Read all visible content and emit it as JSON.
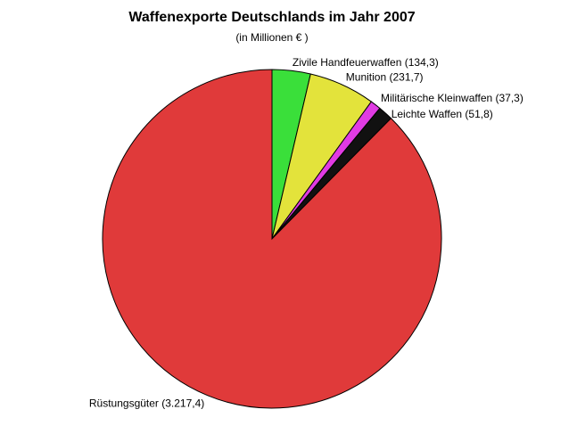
{
  "chart_data": {
    "type": "pie",
    "title": "Waffenexporte Deutschlands im Jahr 2007",
    "subtitle": "(in Millionen € )",
    "start": "top",
    "direction": "clockwise",
    "slices": [
      {
        "label": "Zivile Handfeuerwaffen (134,3)",
        "value": 134.3,
        "color": "#3ADF3A"
      },
      {
        "label": "Munition (231,7)",
        "value": 231.7,
        "color": "#E3E33B"
      },
      {
        "label": "Militärische Kleinwaffen (37,3)",
        "value": 37.3,
        "color": "#E03BE3"
      },
      {
        "label": "Leichte Waffen (51,8)",
        "value": 51.8,
        "color": "#111111"
      },
      {
        "label": "Rüstungsgüter (3.217,4)",
        "value": 3217.4,
        "color": "#E03A3A"
      }
    ]
  }
}
